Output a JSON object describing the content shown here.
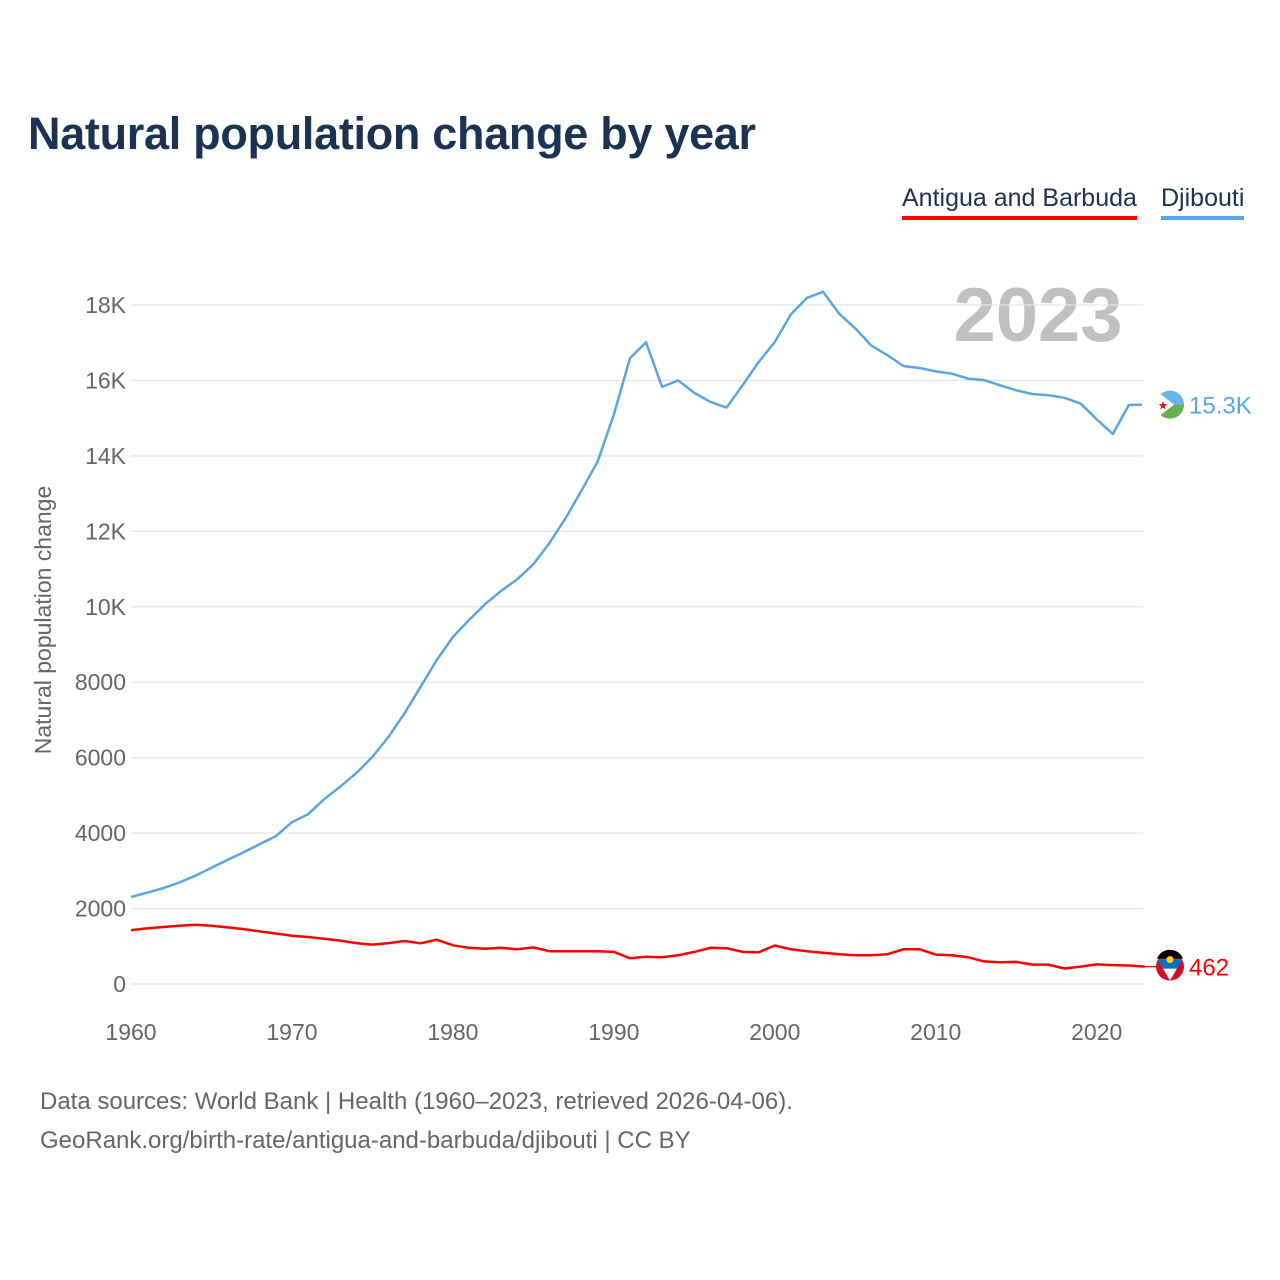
{
  "chart_data": {
    "type": "line",
    "title": "Natural population change by year",
    "xlabel": "",
    "ylabel": "Natural population change",
    "xlim": [
      1960,
      2023
    ],
    "ylim": [
      0,
      18000
    ],
    "x_ticks": [
      1960,
      1970,
      1980,
      1990,
      2000,
      2010,
      2020
    ],
    "x_tick_labels": [
      "1960",
      "1970",
      "1980",
      "1990",
      "2000",
      "2010",
      "2020"
    ],
    "y_ticks": [
      0,
      2000,
      4000,
      6000,
      8000,
      10000,
      12000,
      14000,
      16000,
      18000
    ],
    "y_tick_labels": [
      "0",
      "2000",
      "4000",
      "6000",
      "8000",
      "10K",
      "12K",
      "14K",
      "16K",
      "18K"
    ],
    "grid": true,
    "legend_position": "top-right",
    "year_label": "2023",
    "x": [
      1960,
      1961,
      1962,
      1963,
      1964,
      1965,
      1966,
      1967,
      1968,
      1969,
      1970,
      1971,
      1972,
      1973,
      1974,
      1975,
      1976,
      1977,
      1978,
      1979,
      1980,
      1981,
      1982,
      1983,
      1984,
      1985,
      1986,
      1987,
      1988,
      1989,
      1990,
      1991,
      1992,
      1993,
      1994,
      1995,
      1996,
      1997,
      1998,
      1999,
      2000,
      2001,
      2002,
      2003,
      2004,
      2005,
      2006,
      2007,
      2008,
      2009,
      2010,
      2011,
      2012,
      2013,
      2014,
      2015,
      2016,
      2017,
      2018,
      2019,
      2020,
      2021,
      2022,
      2023
    ],
    "series": [
      {
        "name": "Antigua and Barbuda",
        "color": "#ff0000",
        "end_label": "462",
        "values": [
          1430,
          1475,
          1510,
          1545,
          1570,
          1545,
          1500,
          1455,
          1395,
          1340,
          1280,
          1245,
          1200,
          1150,
          1085,
          1045,
          1085,
          1140,
          1080,
          1175,
          1025,
          960,
          935,
          960,
          920,
          970,
          870,
          870,
          870,
          870,
          850,
          680,
          725,
          710,
          760,
          850,
          960,
          950,
          850,
          840,
          1020,
          920,
          870,
          830,
          790,
          760,
          760,
          790,
          920,
          920,
          780,
          760,
          710,
          600,
          575,
          585,
          515,
          515,
          410,
          460,
          520,
          500,
          490,
          462
        ]
      },
      {
        "name": "Djibouti",
        "color": "#5aa5e8",
        "end_label": "15.3K",
        "values": [
          2310,
          2420,
          2540,
          2690,
          2870,
          3080,
          3290,
          3490,
          3710,
          3920,
          4290,
          4500,
          4900,
          5230,
          5590,
          6020,
          6550,
          7180,
          7880,
          8590,
          9200,
          9650,
          10070,
          10420,
          10730,
          11130,
          11690,
          12350,
          13090,
          13860,
          15100,
          16590,
          17010,
          15830,
          16000,
          15670,
          15430,
          15280,
          15870,
          16490,
          17020,
          17750,
          18190,
          18350,
          17770,
          17380,
          16920,
          16670,
          16380,
          16330,
          16240,
          16180,
          16050,
          16010,
          15870,
          15740,
          15640,
          15610,
          15540,
          15390,
          14970,
          14580,
          15350,
          15360
        ]
      }
    ]
  },
  "footer": {
    "line1": "Data sources: World Bank | Health (1960–2023, retrieved 2026-04-06).",
    "line2": "GeoRank.org/birth-rate/antigua-and-barbuda/djibouti | CC BY"
  }
}
